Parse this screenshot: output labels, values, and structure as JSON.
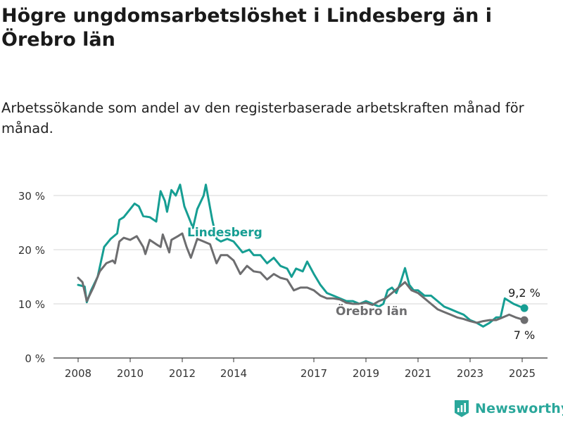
{
  "header": {
    "title": "Högre ungdomsarbetslöshet i Lindesberg än i Örebro län",
    "subtitle": "Arbetssökande som andel av den registerbaserade arbetskraften månad för månad."
  },
  "branding": {
    "name": "Newsworthy",
    "color": "#2aa79b"
  },
  "chart_data": {
    "type": "line",
    "x_ticks": [
      "2008",
      "2010",
      "2012",
      "2014",
      "2017",
      "2019",
      "2021",
      "2023",
      "2025"
    ],
    "y_ticks": [
      "0 %",
      "10 %",
      "20 %",
      "30 %"
    ],
    "ylim": [
      0,
      32
    ],
    "grid": true,
    "series": [
      {
        "name": "Lindesberg",
        "color": "#169e93",
        "end_label": "9,2 %",
        "end_value": 9.2,
        "points": [
          [
            "2008-01",
            13.5
          ],
          [
            "2008-04",
            13.2
          ],
          [
            "2008-05",
            10.3
          ],
          [
            "2008-07",
            12.5
          ],
          [
            "2008-10",
            15.0
          ],
          [
            "2009-01",
            20.5
          ],
          [
            "2009-04",
            22.0
          ],
          [
            "2009-07",
            23.0
          ],
          [
            "2009-08",
            25.5
          ],
          [
            "2009-10",
            26.0
          ],
          [
            "2010-01",
            27.5
          ],
          [
            "2010-03",
            28.5
          ],
          [
            "2010-05",
            28.0
          ],
          [
            "2010-07",
            26.2
          ],
          [
            "2010-10",
            26.0
          ],
          [
            "2011-01",
            25.2
          ],
          [
            "2011-03",
            30.8
          ],
          [
            "2011-05",
            29.0
          ],
          [
            "2011-06",
            27.0
          ],
          [
            "2011-08",
            31.0
          ],
          [
            "2011-10",
            30.0
          ],
          [
            "2011-12",
            32.0
          ],
          [
            "2012-02",
            28.0
          ],
          [
            "2012-05",
            25.0
          ],
          [
            "2012-06",
            24.0
          ],
          [
            "2012-08",
            27.5
          ],
          [
            "2012-11",
            30.0
          ],
          [
            "2012-12",
            32.0
          ],
          [
            "2013-03",
            25.5
          ],
          [
            "2013-05",
            22.0
          ],
          [
            "2013-07",
            21.5
          ],
          [
            "2013-10",
            22.0
          ],
          [
            "2014-01",
            21.5
          ],
          [
            "2014-03",
            20.5
          ],
          [
            "2014-05",
            19.5
          ],
          [
            "2014-08",
            20.0
          ],
          [
            "2014-10",
            19.0
          ],
          [
            "2015-01",
            19.0
          ],
          [
            "2015-04",
            17.5
          ],
          [
            "2015-07",
            18.5
          ],
          [
            "2015-10",
            17.0
          ],
          [
            "2016-01",
            16.5
          ],
          [
            "2016-03",
            15.0
          ],
          [
            "2016-05",
            16.5
          ],
          [
            "2016-08",
            16.0
          ],
          [
            "2016-10",
            17.8
          ],
          [
            "2017-01",
            15.5
          ],
          [
            "2017-04",
            13.5
          ],
          [
            "2017-07",
            12.0
          ],
          [
            "2017-10",
            11.5
          ],
          [
            "2018-01",
            11.0
          ],
          [
            "2018-04",
            10.5
          ],
          [
            "2018-07",
            10.5
          ],
          [
            "2018-10",
            10.0
          ],
          [
            "2019-01",
            10.5
          ],
          [
            "2019-04",
            10.0
          ],
          [
            "2019-07",
            9.5
          ],
          [
            "2019-09",
            10.0
          ],
          [
            "2019-11",
            12.5
          ],
          [
            "2020-01",
            13.0
          ],
          [
            "2020-03",
            12.0
          ],
          [
            "2020-05",
            14.0
          ],
          [
            "2020-07",
            16.6
          ],
          [
            "2020-09",
            13.5
          ],
          [
            "2020-11",
            12.5
          ],
          [
            "2021-01",
            12.5
          ],
          [
            "2021-04",
            11.5
          ],
          [
            "2021-07",
            11.5
          ],
          [
            "2021-10",
            10.5
          ],
          [
            "2022-01",
            9.5
          ],
          [
            "2022-04",
            9.0
          ],
          [
            "2022-07",
            8.5
          ],
          [
            "2022-10",
            8.0
          ],
          [
            "2023-01",
            7.0
          ],
          [
            "2023-04",
            6.5
          ],
          [
            "2023-07",
            5.8
          ],
          [
            "2023-10",
            6.5
          ],
          [
            "2024-01",
            7.5
          ],
          [
            "2024-03",
            7.5
          ],
          [
            "2024-05",
            11.0
          ],
          [
            "2024-07",
            10.5
          ],
          [
            "2024-09",
            10.0
          ],
          [
            "2024-12",
            9.5
          ],
          [
            "2025-02",
            9.2
          ]
        ]
      },
      {
        "name": "Örebro län",
        "color": "#6d6d6f",
        "end_label": "7 %",
        "end_value": 7.0,
        "points": [
          [
            "2008-01",
            14.8
          ],
          [
            "2008-03",
            14.0
          ],
          [
            "2008-05",
            10.5
          ],
          [
            "2008-08",
            13.0
          ],
          [
            "2008-11",
            16.0
          ],
          [
            "2009-02",
            17.5
          ],
          [
            "2009-05",
            18.0
          ],
          [
            "2009-06",
            17.5
          ],
          [
            "2009-08",
            21.5
          ],
          [
            "2009-10",
            22.2
          ],
          [
            "2010-01",
            21.8
          ],
          [
            "2010-04",
            22.5
          ],
          [
            "2010-07",
            20.5
          ],
          [
            "2010-08",
            19.2
          ],
          [
            "2010-10",
            21.8
          ],
          [
            "2011-01",
            21.0
          ],
          [
            "2011-03",
            20.5
          ],
          [
            "2011-04",
            22.8
          ],
          [
            "2011-07",
            19.5
          ],
          [
            "2011-08",
            21.8
          ],
          [
            "2011-11",
            22.5
          ],
          [
            "2012-01",
            23.0
          ],
          [
            "2012-03",
            20.5
          ],
          [
            "2012-05",
            18.5
          ],
          [
            "2012-08",
            22.0
          ],
          [
            "2012-11",
            21.5
          ],
          [
            "2013-02",
            21.0
          ],
          [
            "2013-05",
            17.5
          ],
          [
            "2013-07",
            19.0
          ],
          [
            "2013-10",
            19.0
          ],
          [
            "2014-01",
            18.0
          ],
          [
            "2014-04",
            15.5
          ],
          [
            "2014-07",
            17.0
          ],
          [
            "2014-10",
            16.0
          ],
          [
            "2015-01",
            15.8
          ],
          [
            "2015-04",
            14.5
          ],
          [
            "2015-07",
            15.5
          ],
          [
            "2015-10",
            14.8
          ],
          [
            "2016-01",
            14.5
          ],
          [
            "2016-04",
            12.5
          ],
          [
            "2016-07",
            13.0
          ],
          [
            "2016-10",
            13.0
          ],
          [
            "2017-01",
            12.5
          ],
          [
            "2017-04",
            11.5
          ],
          [
            "2017-07",
            11.0
          ],
          [
            "2017-10",
            11.0
          ],
          [
            "2018-01",
            10.8
          ],
          [
            "2018-04",
            10.2
          ],
          [
            "2018-07",
            10.0
          ],
          [
            "2018-10",
            10.0
          ],
          [
            "2019-01",
            10.2
          ],
          [
            "2019-04",
            9.8
          ],
          [
            "2019-07",
            10.5
          ],
          [
            "2019-10",
            11.0
          ],
          [
            "2020-01",
            12.0
          ],
          [
            "2020-04",
            13.0
          ],
          [
            "2020-07",
            14.0
          ],
          [
            "2020-10",
            12.5
          ],
          [
            "2021-01",
            12.0
          ],
          [
            "2021-04",
            11.0
          ],
          [
            "2021-07",
            10.0
          ],
          [
            "2021-10",
            9.0
          ],
          [
            "2022-01",
            8.5
          ],
          [
            "2022-04",
            8.0
          ],
          [
            "2022-07",
            7.5
          ],
          [
            "2022-10",
            7.2
          ],
          [
            "2023-01",
            6.8
          ],
          [
            "2023-04",
            6.5
          ],
          [
            "2023-07",
            6.8
          ],
          [
            "2023-10",
            7.0
          ],
          [
            "2024-01",
            7.0
          ],
          [
            "2024-04",
            7.5
          ],
          [
            "2024-07",
            8.0
          ],
          [
            "2024-10",
            7.5
          ],
          [
            "2025-02",
            7.0
          ]
        ]
      }
    ]
  }
}
